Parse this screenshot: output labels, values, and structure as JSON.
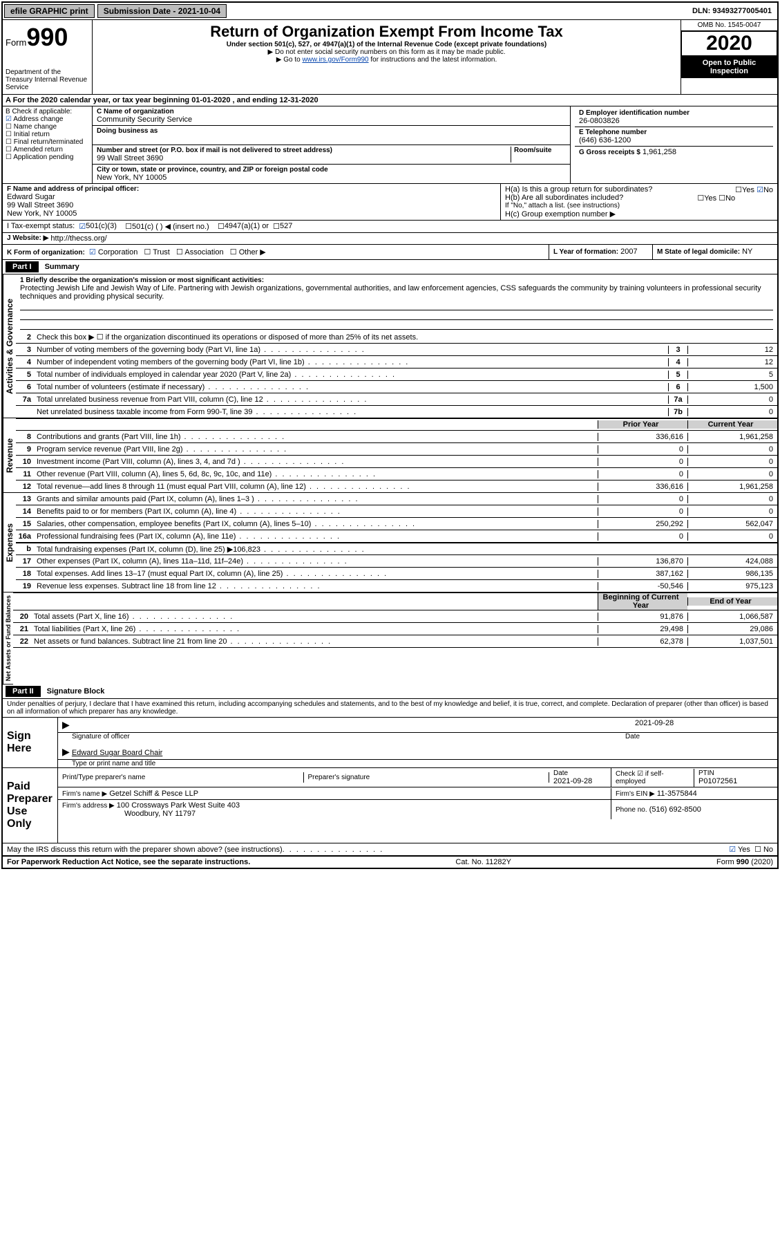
{
  "topbar": {
    "efile": "efile GRAPHIC print",
    "submission": "Submission Date - 2021-10-04",
    "dln": "DLN: 93493277005401"
  },
  "header": {
    "form_label": "Form",
    "form_num": "990",
    "dept": "Department of the Treasury\nInternal Revenue Service",
    "title": "Return of Organization Exempt From Income Tax",
    "subtitle": "Under section 501(c), 527, or 4947(a)(1) of the Internal Revenue Code (except private foundations)",
    "note1": "▶ Do not enter social security numbers on this form as it may be made public.",
    "note2_pre": "▶ Go to ",
    "note2_link": "www.irs.gov/Form990",
    "note2_post": " for instructions and the latest information.",
    "omb": "OMB No. 1545-0047",
    "year": "2020",
    "open": "Open to Public Inspection"
  },
  "A": {
    "text": "A For the 2020 calendar year, or tax year beginning 01-01-2020   , and ending 12-31-2020"
  },
  "B": {
    "label": "B Check if applicable:",
    "items": [
      "Address change",
      "Name change",
      "Initial return",
      "Final return/terminated",
      "Amended return",
      "Application pending"
    ],
    "checked_index": 0
  },
  "C": {
    "name_label": "C Name of organization",
    "name": "Community Security Service",
    "dba_label": "Doing business as",
    "addr_label": "Number and street (or P.O. box if mail is not delivered to street address)",
    "room_label": "Room/suite",
    "addr": "99 Wall Street 3690",
    "city_label": "City or town, state or province, country, and ZIP or foreign postal code",
    "city": "New York, NY  10005"
  },
  "D": {
    "label": "D Employer identification number",
    "value": "26-0803826"
  },
  "E": {
    "label": "E Telephone number",
    "value": "(646) 636-1200"
  },
  "G": {
    "label": "G Gross receipts $",
    "value": "1,961,258"
  },
  "F": {
    "label": "F  Name and address of principal officer:",
    "name": "Edward Sugar",
    "addr1": "99 Wall Street 3690",
    "addr2": "New York, NY  10005"
  },
  "H": {
    "a_label": "H(a)  Is this a group return for subordinates?",
    "a_yes": "Yes",
    "a_no": "No",
    "b_label": "H(b)  Are all subordinates included?",
    "b_yes": "Yes",
    "b_no": "No",
    "b_note": "If \"No,\" attach a list. (see instructions)",
    "c_label": "H(c)  Group exemption number ▶"
  },
  "I": {
    "label": "I    Tax-exempt status:",
    "opt1": "501(c)(3)",
    "opt2": "501(c) (  ) ◀ (insert no.)",
    "opt3": "4947(a)(1) or",
    "opt4": "527"
  },
  "J": {
    "label": "J   Website: ▶",
    "value": "http://thecss.org/"
  },
  "K": {
    "label": "K Form of organization:",
    "opts": [
      "Corporation",
      "Trust",
      "Association",
      "Other ▶"
    ]
  },
  "L": {
    "label": "L Year of formation:",
    "value": "2007"
  },
  "M": {
    "label": "M State of legal domicile:",
    "value": "NY"
  },
  "part1": {
    "hdr": "Part I",
    "title": "Summary",
    "l1_label": "1  Briefly describe the organization's mission or most significant activities:",
    "l1_text": "Protecting Jewish Life and Jewish Way of Life. Partnering with Jewish organizations, governmental authorities, and law enforcement agencies, CSS safeguards the community by training volunteers in professional security techniques and providing physical security.",
    "l2": "Check this box ▶ ☐ if the organization discontinued its operations or disposed of more than 25% of its net assets.",
    "lines_gov": [
      {
        "n": "3",
        "t": "Number of voting members of the governing body (Part VI, line 1a)",
        "box": "3",
        "v": "12"
      },
      {
        "n": "4",
        "t": "Number of independent voting members of the governing body (Part VI, line 1b)",
        "box": "4",
        "v": "12"
      },
      {
        "n": "5",
        "t": "Total number of individuals employed in calendar year 2020 (Part V, line 2a)",
        "box": "5",
        "v": "5"
      },
      {
        "n": "6",
        "t": "Total number of volunteers (estimate if necessary)",
        "box": "6",
        "v": "1,500"
      },
      {
        "n": "7a",
        "t": "Total unrelated business revenue from Part VIII, column (C), line 12",
        "box": "7a",
        "v": "0"
      },
      {
        "n": "",
        "t": "Net unrelated business taxable income from Form 990-T, line 39",
        "box": "7b",
        "v": "0"
      }
    ],
    "col_prior": "Prior Year",
    "col_current": "Current Year",
    "rev": [
      {
        "n": "8",
        "t": "Contributions and grants (Part VIII, line 1h)",
        "p": "336,616",
        "c": "1,961,258"
      },
      {
        "n": "9",
        "t": "Program service revenue (Part VIII, line 2g)",
        "p": "0",
        "c": "0"
      },
      {
        "n": "10",
        "t": "Investment income (Part VIII, column (A), lines 3, 4, and 7d )",
        "p": "0",
        "c": "0"
      },
      {
        "n": "11",
        "t": "Other revenue (Part VIII, column (A), lines 5, 6d, 8c, 9c, 10c, and 11e)",
        "p": "0",
        "c": "0"
      },
      {
        "n": "12",
        "t": "Total revenue—add lines 8 through 11 (must equal Part VIII, column (A), line 12)",
        "p": "336,616",
        "c": "1,961,258"
      }
    ],
    "exp": [
      {
        "n": "13",
        "t": "Grants and similar amounts paid (Part IX, column (A), lines 1–3 )",
        "p": "0",
        "c": "0"
      },
      {
        "n": "14",
        "t": "Benefits paid to or for members (Part IX, column (A), line 4)",
        "p": "0",
        "c": "0"
      },
      {
        "n": "15",
        "t": "Salaries, other compensation, employee benefits (Part IX, column (A), lines 5–10)",
        "p": "250,292",
        "c": "562,047"
      },
      {
        "n": "16a",
        "t": "Professional fundraising fees (Part IX, column (A), line 11e)",
        "p": "0",
        "c": "0"
      },
      {
        "n": "b",
        "t": "Total fundraising expenses (Part IX, column (D), line 25) ▶106,823",
        "p": "",
        "c": "",
        "shade": true
      },
      {
        "n": "17",
        "t": "Other expenses (Part IX, column (A), lines 11a–11d, 11f–24e)",
        "p": "136,870",
        "c": "424,088"
      },
      {
        "n": "18",
        "t": "Total expenses. Add lines 13–17 (must equal Part IX, column (A), line 25)",
        "p": "387,162",
        "c": "986,135"
      },
      {
        "n": "19",
        "t": "Revenue less expenses. Subtract line 18 from line 12",
        "p": "-50,546",
        "c": "975,123"
      }
    ],
    "col_beg": "Beginning of Current Year",
    "col_end": "End of Year",
    "net": [
      {
        "n": "20",
        "t": "Total assets (Part X, line 16)",
        "p": "91,876",
        "c": "1,066,587"
      },
      {
        "n": "21",
        "t": "Total liabilities (Part X, line 26)",
        "p": "29,498",
        "c": "29,086"
      },
      {
        "n": "22",
        "t": "Net assets or fund balances. Subtract line 21 from line 20",
        "p": "62,378",
        "c": "1,037,501"
      }
    ],
    "vlabels": {
      "gov": "Activities & Governance",
      "rev": "Revenue",
      "exp": "Expenses",
      "net": "Net Assets or\nFund Balances"
    }
  },
  "part2": {
    "hdr": "Part II",
    "title": "Signature Block",
    "decl": "Under penalties of perjury, I declare that I have examined this return, including accompanying schedules and statements, and to the best of my knowledge and belief, it is true, correct, and complete. Declaration of preparer (other than officer) is based on all information of which preparer has any knowledge.",
    "sign_here": "Sign Here",
    "sig_officer": "Signature of officer",
    "sig_date_label": "Date",
    "sig_date": "2021-09-28",
    "sig_name": "Edward Sugar Board Chair",
    "sig_name_label": "Type or print name and title",
    "paid": "Paid Preparer Use Only",
    "prep_name_label": "Print/Type preparer's name",
    "prep_sig_label": "Preparer's signature",
    "prep_date_label": "Date",
    "prep_date": "2021-09-28",
    "self_emp": "Check ☑ if self-employed",
    "ptin_label": "PTIN",
    "ptin": "P01072561",
    "firm_name_label": "Firm's name   ▶",
    "firm_name": "Getzel Schiff & Pesce LLP",
    "firm_ein_label": "Firm's EIN ▶",
    "firm_ein": "11-3575844",
    "firm_addr_label": "Firm's address ▶",
    "firm_addr1": "100 Crossways Park West Suite 403",
    "firm_addr2": "Woodbury, NY  11797",
    "firm_phone_label": "Phone no.",
    "firm_phone": "(516) 692-8500",
    "discuss": "May the IRS discuss this return with the preparer shown above? (see instructions)",
    "discuss_yes": "Yes",
    "discuss_no": "No"
  },
  "footer": {
    "left": "For Paperwork Reduction Act Notice, see the separate instructions.",
    "mid": "Cat. No. 11282Y",
    "right": "Form 990 (2020)"
  }
}
